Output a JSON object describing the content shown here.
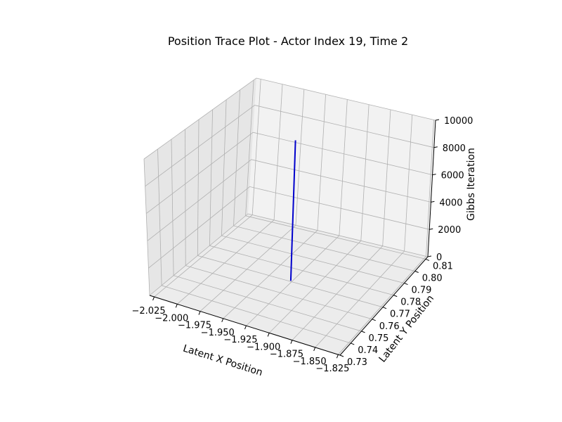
{
  "chart_data": {
    "type": "line",
    "title": "Position Trace Plot - Actor Index 19, Time 2",
    "xlabel": "Latent X Position",
    "ylabel": "Latent Y Position",
    "zlabel": "Gibbs Iteration",
    "xlim": [
      -2.03,
      -1.823
    ],
    "ylim": [
      0.73,
      0.812
    ],
    "zlim": [
      0,
      10000
    ],
    "x_ticks": [
      "−2.025",
      "−2.000",
      "−1.975",
      "−1.950",
      "−1.925",
      "−1.900",
      "−1.875",
      "−1.850",
      "−1.825"
    ],
    "x_tick_values": [
      -2.025,
      -2.0,
      -1.975,
      -1.95,
      -1.925,
      -1.9,
      -1.875,
      -1.85,
      -1.825
    ],
    "y_ticks": [
      "0.73",
      "0.74",
      "0.75",
      "0.76",
      "0.77",
      "0.78",
      "0.79",
      "0.80",
      "0.81"
    ],
    "y_tick_values": [
      0.73,
      0.74,
      0.75,
      0.76,
      0.77,
      0.78,
      0.79,
      0.8,
      0.81
    ],
    "z_ticks": [
      "0",
      "2000",
      "4000",
      "6000",
      "8000",
      "10000"
    ],
    "z_tick_values": [
      0,
      2000,
      4000,
      6000,
      8000,
      10000
    ],
    "grid": true,
    "series": [
      {
        "color": "#0000cc",
        "points": [
          {
            "x": -1.9265,
            "y": 0.7705,
            "z": 0
          },
          {
            "x": -1.9265,
            "y": 0.7705,
            "z": 10000
          }
        ]
      }
    ]
  }
}
